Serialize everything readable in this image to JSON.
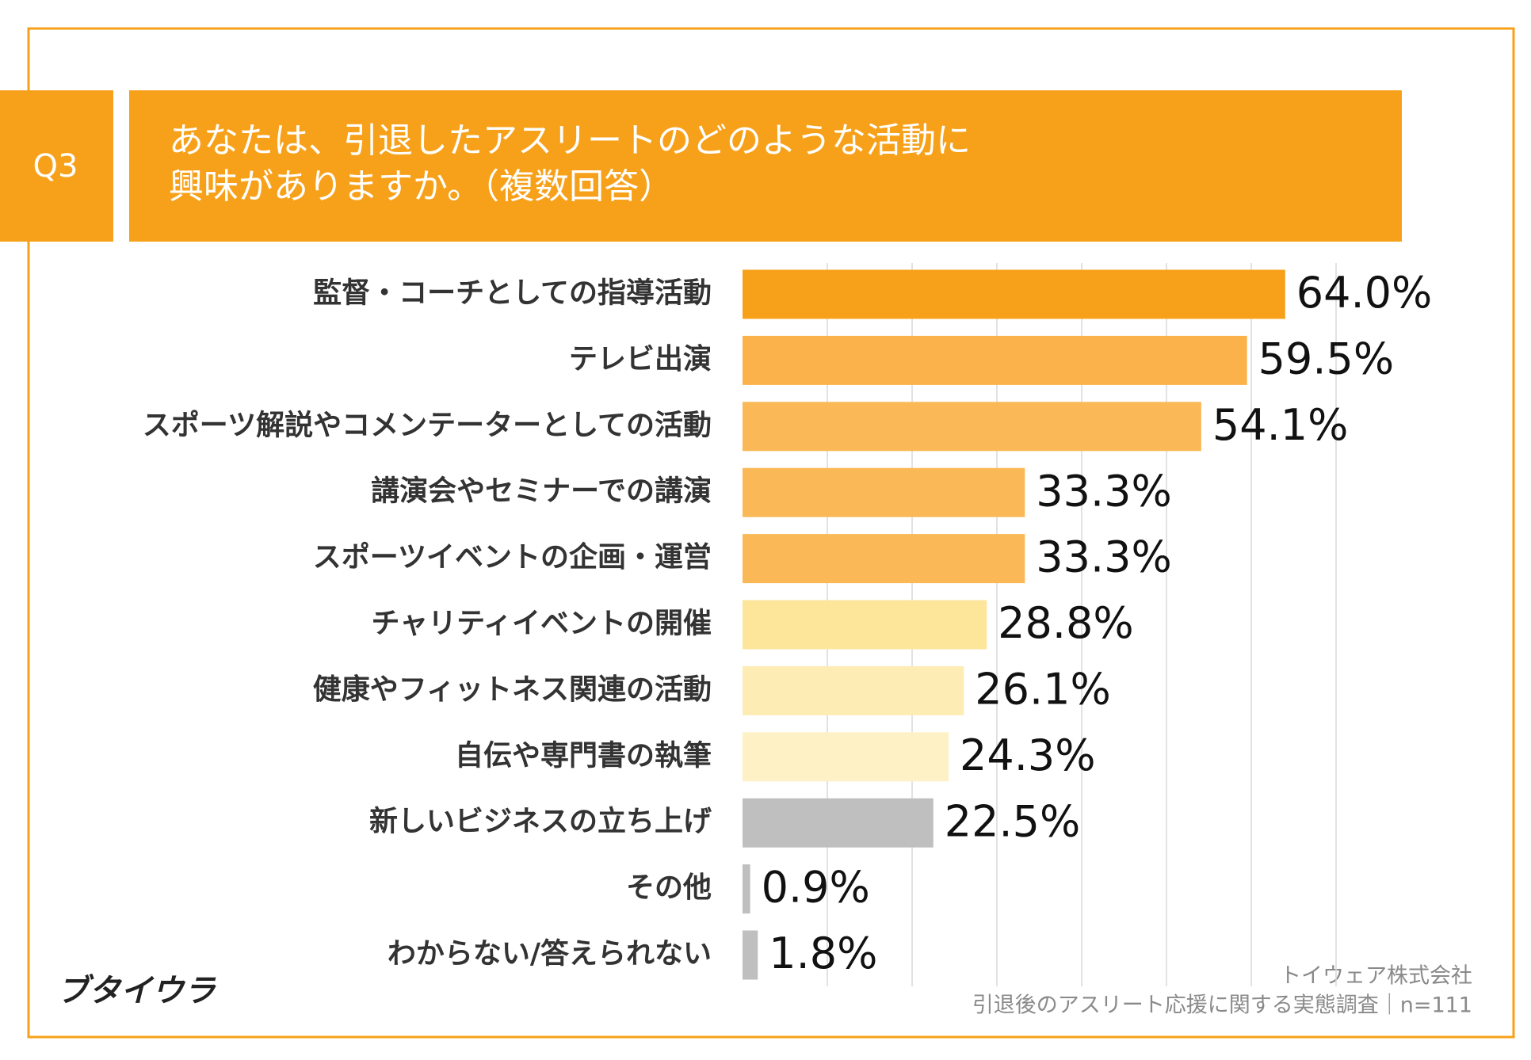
{
  "chart_data": {
    "type": "barh",
    "question_label": "Q3",
    "title": [
      "あなたは、引退したアスリートのどのような活動に",
      "興味がありますか。（複数回答）"
    ],
    "categories": [
      "監督・コーチとしての指導活動",
      "テレビ出演",
      "スポーツ解説やコメンテーターとしての活動",
      "講演会やセミナーでの講演",
      "スポーツイベントの企画・運営",
      "チャリティイベントの開催",
      "健康やフィットネス関連の活動",
      "自伝や専門書の執筆",
      "新しいビジネスの立ち上げ",
      "その他",
      "わからない/答えられない"
    ],
    "values": [
      64.0,
      59.5,
      54.1,
      33.3,
      33.3,
      28.8,
      26.1,
      24.3,
      22.5,
      0.9,
      1.8
    ],
    "value_labels": [
      "64.0%",
      "59.5%",
      "54.1%",
      "33.3%",
      "33.3%",
      "28.8%",
      "26.1%",
      "24.3%",
      "22.5%",
      "0.9%",
      "1.8%"
    ],
    "colors": [
      "#f7a11a",
      "#fbb24a",
      "#fbb856",
      "#fbb856",
      "#fbb856",
      "#fde59a",
      "#feecb5",
      "#fef1c6",
      "#bfbfbf",
      "#bfbfbf",
      "#bfbfbf"
    ],
    "xlim": [
      0,
      70
    ],
    "xticks": [
      10,
      20,
      30,
      40,
      50,
      60,
      70
    ],
    "grid": true,
    "logo": "ブタイウラ",
    "source": [
      "トイウェア株式会社",
      "引退後のアスリート応援に関する実態調査｜n=111"
    ]
  }
}
